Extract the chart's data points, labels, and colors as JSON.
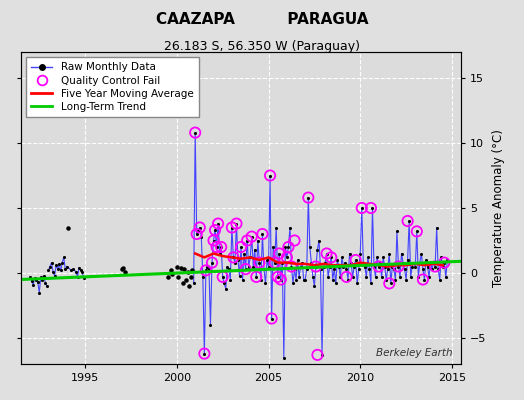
{
  "title1": "CAAZAPA          PARAGUA",
  "title2": "26.183 S, 56.350 W (Paraguay)",
  "ylabel_right": "Temperature Anomaly (°C)",
  "watermark": "Berkeley Earth",
  "ylim": [
    -7,
    17
  ],
  "xlim": [
    1991.5,
    2015.5
  ],
  "yticks": [
    -5,
    0,
    5,
    10,
    15
  ],
  "xticks": [
    1995,
    2000,
    2005,
    2010,
    2015
  ],
  "bg_color": "#e0e0e0",
  "plot_bg": "#dcdcdc",
  "grid_color": "#ffffff",
  "colors": {
    "raw_line": "#4444ff",
    "raw_marker": "#000000",
    "qc_fail": "#ff00ff",
    "moving_avg": "#ff0000",
    "trend": "#00cc00"
  },
  "segments_1992": {
    "x": [
      1992.0,
      1992.083,
      1992.167,
      1992.25,
      1992.333,
      1992.417,
      1992.5,
      1992.583,
      1992.667,
      1992.75,
      1992.833,
      1992.917
    ],
    "y": [
      -0.3,
      -0.6,
      -0.9,
      -0.4,
      -0.5,
      -0.7,
      -1.5,
      -0.3,
      -0.5,
      -0.2,
      -0.8,
      -1.0
    ]
  },
  "segments_1993": {
    "x": [
      1993.0,
      1993.083,
      1993.167,
      1993.25,
      1993.333,
      1993.417,
      1993.5,
      1993.583,
      1993.667,
      1993.75,
      1993.833,
      1993.917
    ],
    "y": [
      0.2,
      0.5,
      0.8,
      0.1,
      -0.2,
      0.6,
      0.3,
      0.7,
      0.2,
      0.8,
      1.2,
      0.3
    ]
  },
  "isolated_1994": {
    "x": [
      1994.083
    ],
    "y": [
      3.5
    ]
  },
  "segments_1994a": {
    "x": [
      1994.0,
      1994.25,
      1994.333,
      1994.5,
      1994.583,
      1994.667
    ],
    "y": [
      0.5,
      0.2,
      0.3,
      0.1,
      -0.3,
      0.4
    ]
  },
  "segments_1994b": {
    "x": [
      1994.75,
      1994.833,
      1994.917
    ],
    "y": [
      0.2,
      0.1,
      -0.4
    ]
  },
  "isolated_dots": {
    "x": [
      1997.0,
      1997.083,
      1997.167,
      1999.5,
      1999.667,
      1999.75,
      2000.0,
      2000.083,
      2000.25,
      2000.333,
      2000.417,
      2000.5,
      2000.583,
      2000.667,
      2000.75,
      2000.833
    ],
    "y": [
      0.3,
      0.4,
      0.1,
      -0.3,
      0.2,
      -0.1,
      0.5,
      -0.3,
      0.4,
      -0.8,
      0.3,
      -0.5,
      0.1,
      -1.0,
      -0.3,
      0.2
    ]
  },
  "main_data_x": [
    2000.917,
    2001.0,
    2001.083,
    2001.167,
    2001.25,
    2001.333,
    2001.417,
    2001.5,
    2001.583,
    2001.667,
    2001.75,
    2001.833,
    2001.917,
    2002.0,
    2002.083,
    2002.167,
    2002.25,
    2002.333,
    2002.417,
    2002.5,
    2002.583,
    2002.667,
    2002.75,
    2002.833,
    2002.917,
    2003.0,
    2003.083,
    2003.167,
    2003.25,
    2003.333,
    2003.417,
    2003.5,
    2003.583,
    2003.667,
    2003.75,
    2003.833,
    2003.917,
    2004.0,
    2004.083,
    2004.167,
    2004.25,
    2004.333,
    2004.417,
    2004.5,
    2004.583,
    2004.667,
    2004.75,
    2004.833,
    2004.917,
    2005.0,
    2005.083,
    2005.167,
    2005.25,
    2005.333,
    2005.417,
    2005.5,
    2005.583,
    2005.667,
    2005.75,
    2005.833,
    2005.917,
    2006.0,
    2006.083,
    2006.167,
    2006.25,
    2006.333,
    2006.417,
    2006.5,
    2006.583,
    2006.667,
    2006.75,
    2006.833,
    2006.917,
    2007.0,
    2007.083,
    2007.167,
    2007.25,
    2007.333,
    2007.417,
    2007.5,
    2007.583,
    2007.667,
    2007.75,
    2007.833,
    2007.917,
    2008.0,
    2008.083,
    2008.167,
    2008.25,
    2008.333,
    2008.417,
    2008.5,
    2008.583,
    2008.667,
    2008.75,
    2008.833,
    2008.917,
    2009.0,
    2009.083,
    2009.167,
    2009.25,
    2009.333,
    2009.417,
    2009.5,
    2009.583,
    2009.667,
    2009.75,
    2009.833,
    2009.917,
    2010.0,
    2010.083,
    2010.167,
    2010.25,
    2010.333,
    2010.417,
    2010.5,
    2010.583,
    2010.667,
    2010.75,
    2010.833,
    2010.917,
    2011.0,
    2011.083,
    2011.167,
    2011.25,
    2011.333,
    2011.417,
    2011.5,
    2011.583,
    2011.667,
    2011.75,
    2011.833,
    2011.917,
    2012.0,
    2012.083,
    2012.167,
    2012.25,
    2012.333,
    2012.417,
    2012.5,
    2012.583,
    2012.667,
    2012.75,
    2012.833,
    2012.917,
    2013.0,
    2013.083,
    2013.167,
    2013.25,
    2013.333,
    2013.417,
    2013.5,
    2013.583,
    2013.667,
    2013.75,
    2013.833,
    2013.917,
    2014.0,
    2014.083,
    2014.167,
    2014.25,
    2014.333,
    2014.417,
    2014.5,
    2014.583,
    2014.667,
    2014.75
  ],
  "main_data_y": [
    -0.8,
    10.8,
    3.0,
    3.2,
    3.5,
    2.8,
    -0.3,
    -6.2,
    0.2,
    0.5,
    0.3,
    -4.0,
    0.8,
    2.5,
    3.3,
    2.0,
    3.8,
    1.5,
    2.0,
    -0.3,
    -0.8,
    -1.2,
    0.5,
    0.3,
    -0.5,
    3.5,
    1.2,
    0.8,
    3.8,
    1.0,
    -0.2,
    2.0,
    -0.5,
    1.5,
    0.3,
    2.5,
    0.5,
    1.2,
    2.8,
    0.5,
    1.8,
    -0.3,
    2.5,
    0.8,
    -0.5,
    3.0,
    0.3,
    -0.8,
    1.0,
    0.5,
    7.5,
    -3.5,
    2.0,
    0.8,
    3.5,
    -0.3,
    1.5,
    -0.5,
    0.8,
    -6.5,
    2.0,
    1.2,
    2.0,
    3.5,
    0.5,
    -0.8,
    0.3,
    -0.5,
    1.0,
    -0.3,
    0.5,
    0.8,
    -0.5,
    -0.5,
    0.3,
    5.8,
    2.0,
    0.8,
    -0.3,
    -1.0,
    0.5,
    1.8,
    2.5,
    0.3,
    -6.3,
    0.5,
    0.8,
    1.5,
    -0.3,
    0.5,
    1.2,
    -0.5,
    0.3,
    -0.8,
    1.0,
    0.5,
    -0.3,
    1.2,
    0.5,
    0.8,
    0.3,
    -0.5,
    1.5,
    0.8,
    -0.3,
    0.5,
    1.0,
    -0.8,
    0.3,
    1.5,
    5.0,
    0.8,
    0.5,
    -0.3,
    1.2,
    0.3,
    -0.8,
    5.0,
    0.5,
    -0.3,
    1.2,
    0.5,
    0.8,
    -0.3,
    1.2,
    0.5,
    -0.5,
    0.3,
    1.5,
    -0.8,
    0.5,
    0.3,
    -0.5,
    3.2,
    0.5,
    -0.3,
    1.5,
    0.8,
    0.3,
    -0.5,
    1.0,
    4.0,
    -0.3,
    0.5,
    0.8,
    0.5,
    3.2,
    -0.3,
    0.8,
    1.5,
    0.3,
    -0.5,
    1.0,
    0.5,
    -0.3,
    0.8,
    0.3,
    0.8,
    0.5,
    3.5,
    0.3,
    -0.5,
    1.2,
    0.5,
    0.8,
    -0.3,
    1.0
  ],
  "qc_x": [
    2001.0,
    2001.083,
    2001.25,
    2001.5,
    2001.583,
    2001.917,
    2002.0,
    2002.083,
    2002.167,
    2002.25,
    2002.417,
    2002.5,
    2003.0,
    2003.083,
    2003.25,
    2003.5,
    2003.75,
    2003.833,
    2004.083,
    2004.333,
    2004.5,
    2004.667,
    2005.083,
    2005.167,
    2005.333,
    2005.5,
    2005.583,
    2005.667,
    2006.0,
    2006.083,
    2006.25,
    2006.417,
    2007.167,
    2007.583,
    2007.667,
    2008.167,
    2008.417,
    2009.25,
    2009.75,
    2010.083,
    2010.583,
    2011.0,
    2011.583,
    2012.083,
    2012.583,
    2013.083,
    2013.417,
    2014.083,
    2014.583
  ],
  "qc_y": [
    10.8,
    3.0,
    3.5,
    -6.2,
    0.2,
    0.8,
    2.5,
    3.3,
    2.0,
    3.8,
    2.0,
    -0.3,
    3.5,
    1.2,
    3.8,
    2.0,
    0.3,
    2.5,
    2.8,
    -0.3,
    0.8,
    3.0,
    7.5,
    -3.5,
    0.8,
    -0.3,
    1.5,
    -0.5,
    1.2,
    2.0,
    0.5,
    2.5,
    5.8,
    0.5,
    -6.3,
    1.5,
    1.2,
    -0.3,
    1.0,
    5.0,
    5.0,
    0.5,
    -0.8,
    0.5,
    4.0,
    3.2,
    -0.5,
    0.5,
    0.8
  ],
  "moving_avg_x": [
    2001.0,
    2001.5,
    2002.0,
    2002.5,
    2003.0,
    2003.5,
    2004.0,
    2004.5,
    2005.0,
    2005.5,
    2006.0,
    2006.5,
    2007.0,
    2007.5,
    2008.0,
    2008.5,
    2009.0,
    2009.5,
    2010.0,
    2010.5,
    2011.0,
    2011.5,
    2012.0,
    2012.5,
    2013.0,
    2013.5,
    2014.0,
    2014.5
  ],
  "moving_avg_y": [
    1.5,
    1.2,
    1.5,
    1.3,
    1.2,
    1.1,
    1.2,
    1.0,
    1.2,
    0.8,
    0.8,
    0.7,
    0.7,
    0.6,
    0.7,
    0.6,
    0.6,
    0.6,
    0.8,
    0.7,
    0.6,
    0.5,
    0.6,
    0.6,
    0.7,
    0.6,
    0.7,
    0.6
  ],
  "trend_x": [
    1991.5,
    2015.5
  ],
  "trend_y": [
    -0.5,
    0.9
  ]
}
